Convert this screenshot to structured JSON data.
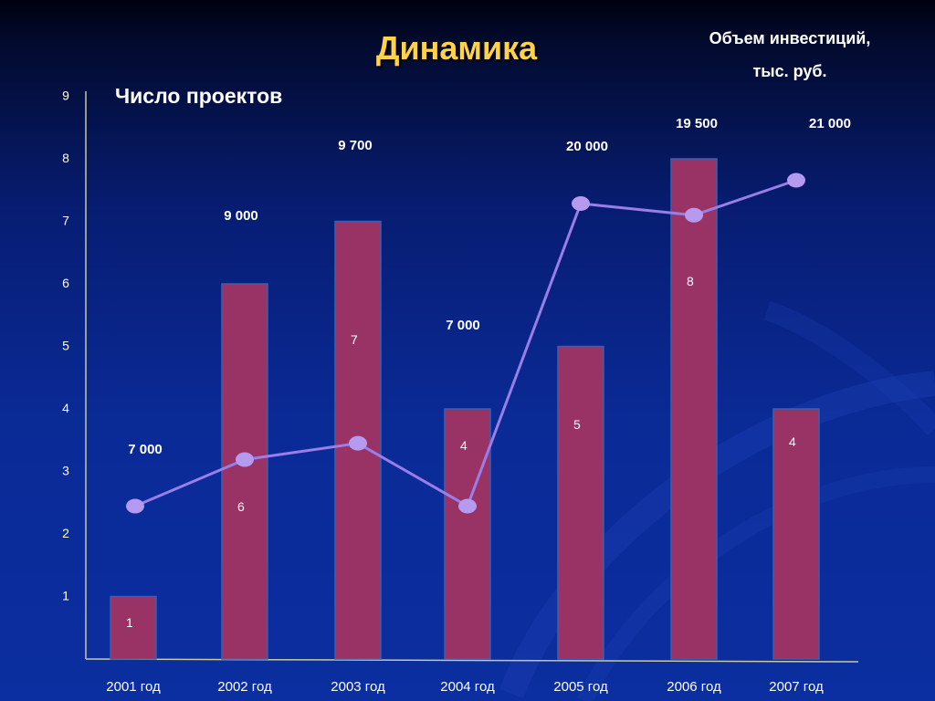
{
  "slide": {
    "title": "Динамика",
    "left_axis_title": "Число проектов",
    "right_axis_title_line1": "Объем инвестиций,",
    "right_axis_title_line2": "тыс. руб."
  },
  "colors": {
    "background": "#0a2a96",
    "title": "#ffd24a",
    "bar_fill": "#993366",
    "bar_stroke": "#3a5fb0",
    "line": "#9a7ee8",
    "marker": "#b69af0",
    "axis": "#c8c8a0"
  },
  "chart_data": {
    "type": "bar",
    "categories": [
      "2001 год",
      "2002 год",
      "2003 год",
      "2004 год",
      "2005 год",
      "2006 год",
      "2007 год"
    ],
    "y_ticks": [
      "1",
      "2",
      "3",
      "4",
      "5",
      "6",
      "7",
      "8",
      "9"
    ],
    "ylim": [
      0,
      9
    ],
    "grid": false,
    "series": [
      {
        "type": "bar",
        "values": [
          1,
          6,
          7,
          4,
          5,
          8,
          4
        ],
        "labels": [
          "1",
          "6",
          "7",
          "4",
          "5",
          "8",
          "4"
        ]
      },
      {
        "type": "line",
        "values": [
          7000,
          9000,
          9700,
          7000,
          20000,
          19500,
          21000
        ],
        "labels": [
          "7 000",
          "9 000",
          "9 700",
          "7 000",
          "20 000",
          "19 500",
          "21 000"
        ]
      }
    ]
  }
}
